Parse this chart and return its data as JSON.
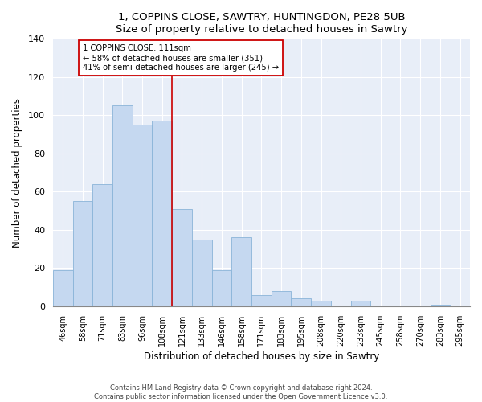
{
  "title": "1, COPPINS CLOSE, SAWTRY, HUNTINGDON, PE28 5UB",
  "subtitle": "Size of property relative to detached houses in Sawtry",
  "xlabel": "Distribution of detached houses by size in Sawtry",
  "ylabel": "Number of detached properties",
  "bar_labels": [
    "46sqm",
    "58sqm",
    "71sqm",
    "83sqm",
    "96sqm",
    "108sqm",
    "121sqm",
    "133sqm",
    "146sqm",
    "158sqm",
    "171sqm",
    "183sqm",
    "195sqm",
    "208sqm",
    "220sqm",
    "233sqm",
    "245sqm",
    "258sqm",
    "270sqm",
    "283sqm",
    "295sqm"
  ],
  "bar_values": [
    19,
    55,
    64,
    105,
    95,
    97,
    51,
    35,
    19,
    36,
    6,
    8,
    4,
    3,
    0,
    3,
    0,
    0,
    0,
    1,
    0
  ],
  "bar_color": "#c5d8f0",
  "bar_edge_color": "#8ab4d8",
  "vline_x": 5.5,
  "vline_color": "#cc0000",
  "annotation_text": "1 COPPINS CLOSE: 111sqm\n← 58% of detached houses are smaller (351)\n41% of semi-detached houses are larger (245) →",
  "annotation_box_color": "#ffffff",
  "annotation_box_edge": "#cc0000",
  "ylim": [
    0,
    140
  ],
  "yticks": [
    0,
    20,
    40,
    60,
    80,
    100,
    120,
    140
  ],
  "footer": "Contains HM Land Registry data © Crown copyright and database right 2024.\nContains public sector information licensed under the Open Government Licence v3.0.",
  "bg_color": "#ffffff",
  "plot_bg_color": "#e8eef8"
}
